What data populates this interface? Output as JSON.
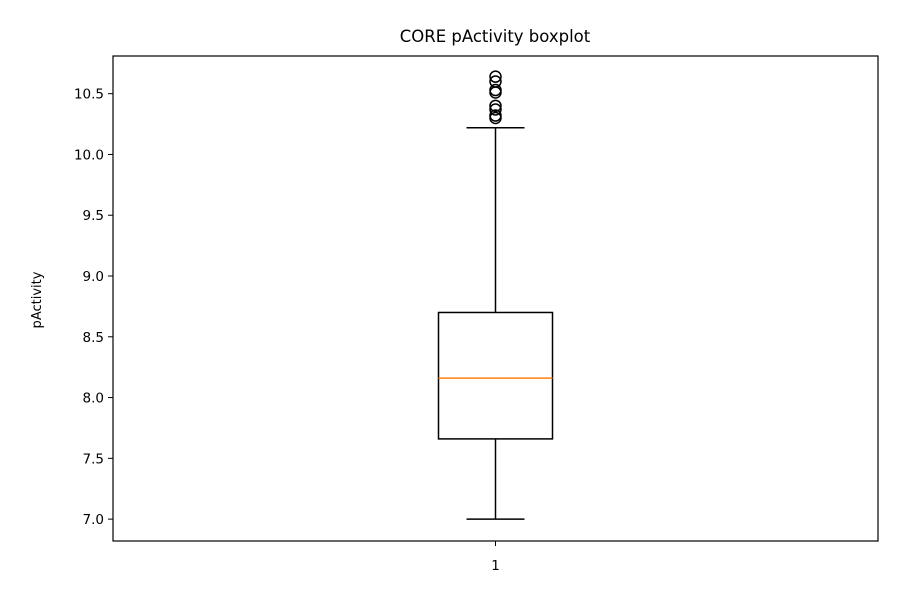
{
  "chart_data": {
    "type": "boxplot",
    "title": "CORE pActivity boxplot",
    "xlabel": "",
    "ylabel": "pActivity",
    "categories": [
      "1"
    ],
    "ylim": [
      6.82,
      10.81
    ],
    "yticks": [
      7.0,
      7.5,
      8.0,
      8.5,
      9.0,
      9.5,
      10.0,
      10.5
    ],
    "ytick_labels": [
      "7.0",
      "7.5",
      "8.0",
      "8.5",
      "9.0",
      "9.5",
      "10.0",
      "10.5"
    ],
    "grid": false,
    "legend": "none",
    "boxes": [
      {
        "category": "1",
        "whisker_low": 7.0,
        "q1": 7.66,
        "median": 8.16,
        "q3": 8.7,
        "whisker_high": 10.22,
        "outliers": [
          10.3,
          10.32,
          10.37,
          10.4,
          10.51,
          10.53,
          10.6,
          10.64
        ]
      }
    ],
    "colors": {
      "box": "#000000",
      "median": "#ff7f0e",
      "whisker": "#000000",
      "outlier": "#000000"
    }
  }
}
